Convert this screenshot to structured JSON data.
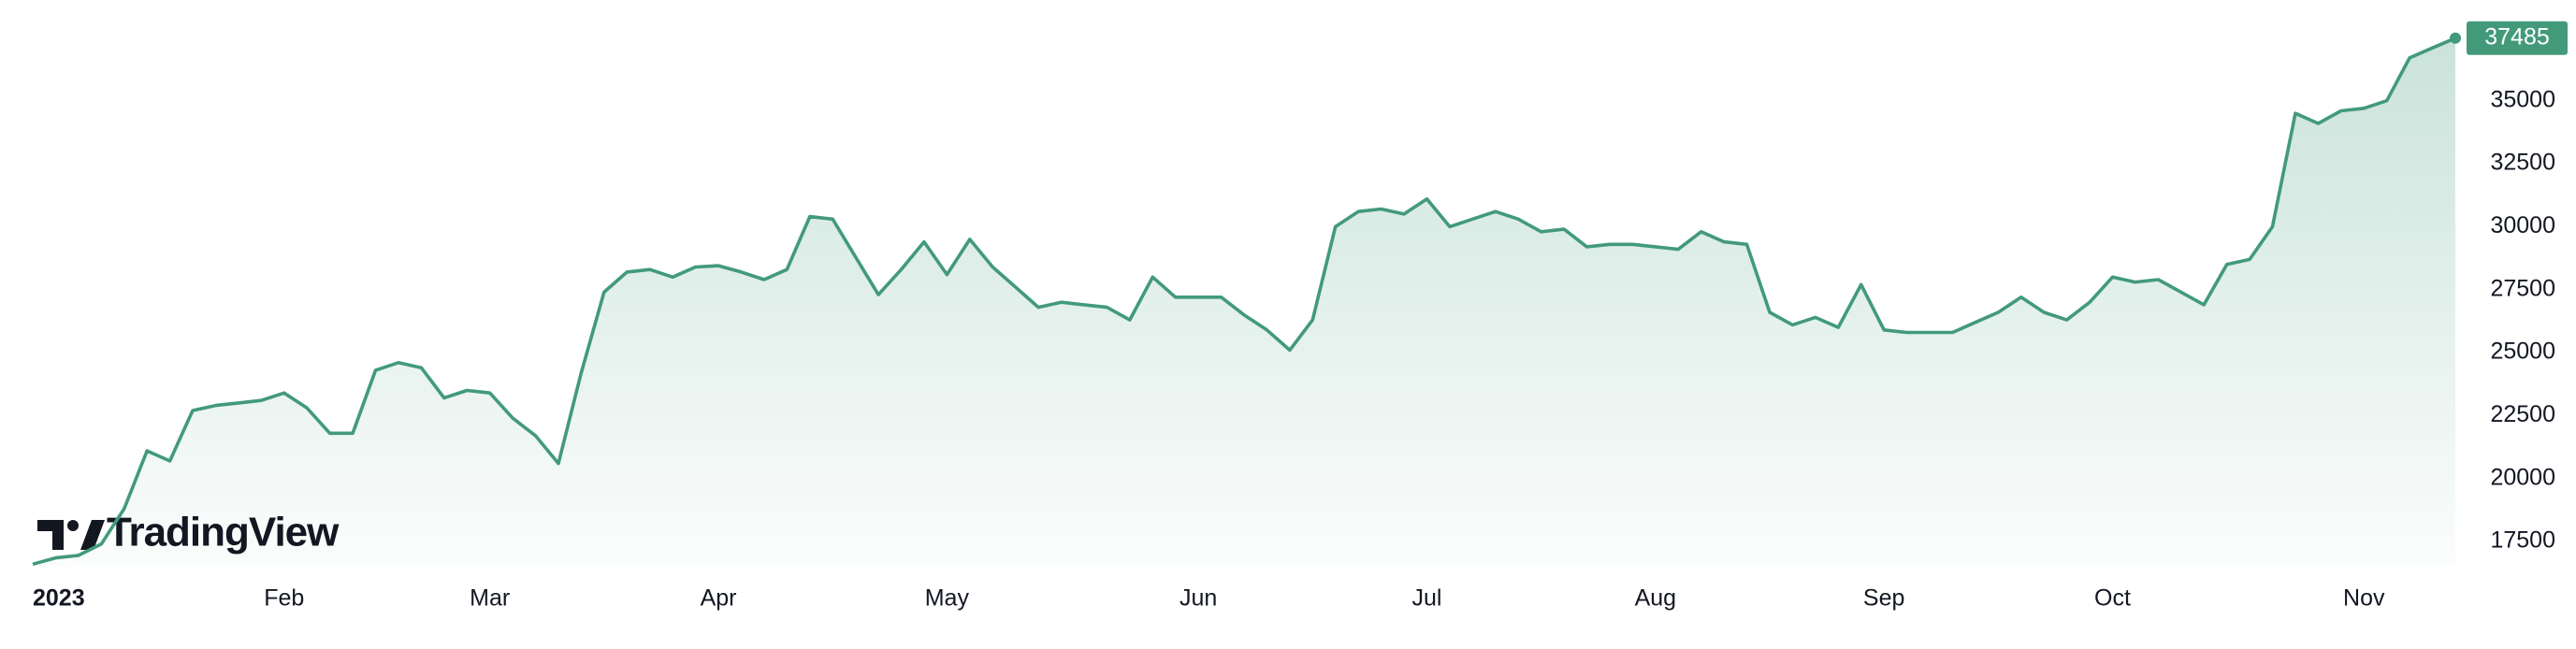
{
  "chart_data": {
    "type": "area",
    "logo": "TradingView",
    "color": "#429a7a",
    "categories": [
      "2023",
      null,
      null,
      null,
      null,
      null,
      null,
      null,
      null,
      null,
      null,
      "Feb",
      null,
      null,
      null,
      null,
      null,
      null,
      null,
      null,
      "Mar",
      null,
      null,
      null,
      null,
      null,
      null,
      null,
      null,
      null,
      "Apr",
      null,
      null,
      null,
      null,
      null,
      null,
      null,
      null,
      null,
      "May",
      null,
      null,
      null,
      null,
      null,
      null,
      null,
      null,
      null,
      null,
      "Jun",
      null,
      null,
      null,
      null,
      null,
      null,
      null,
      null,
      null,
      "Jul",
      null,
      null,
      null,
      null,
      null,
      null,
      null,
      null,
      null,
      "Aug",
      null,
      null,
      null,
      null,
      null,
      null,
      null,
      null,
      null,
      "Sep",
      null,
      null,
      null,
      null,
      null,
      null,
      null,
      null,
      null,
      "Oct",
      null,
      null,
      null,
      null,
      null,
      null,
      null,
      null,
      null,
      null,
      "Nov",
      null,
      null,
      null,
      null
    ],
    "values": [
      16600,
      16850,
      16950,
      17400,
      18800,
      21100,
      20700,
      22700,
      22900,
      23000,
      23100,
      23400,
      22800,
      21800,
      21800,
      24300,
      24600,
      24400,
      23200,
      23500,
      23400,
      22400,
      21700,
      20600,
      24200,
      27400,
      28200,
      28300,
      28000,
      28400,
      28450,
      28200,
      27900,
      28300,
      30400,
      30300,
      28800,
      27300,
      28300,
      29400,
      28100,
      29500,
      28400,
      27600,
      26800,
      27000,
      26900,
      26800,
      26300,
      28000,
      27200,
      27200,
      27200,
      26500,
      25900,
      25100,
      26300,
      30000,
      30600,
      30700,
      30500,
      31100,
      30000,
      30300,
      30600,
      30300,
      29800,
      29900,
      29200,
      29300,
      29300,
      29200,
      29100,
      29800,
      29400,
      29300,
      26600,
      26100,
      26400,
      26000,
      27700,
      25900,
      25800,
      25800,
      25800,
      26200,
      26600,
      27200,
      26600,
      26300,
      27000,
      28000,
      27800,
      27900,
      27400,
      26900,
      28500,
      28700,
      30000,
      34500,
      34100,
      34600,
      34700,
      35000,
      36700,
      37100,
      37485
    ],
    "ylim": [
      16500,
      39000
    ],
    "yticks": [
      17500,
      20000,
      22500,
      25000,
      27500,
      30000,
      32500,
      35000
    ]
  }
}
